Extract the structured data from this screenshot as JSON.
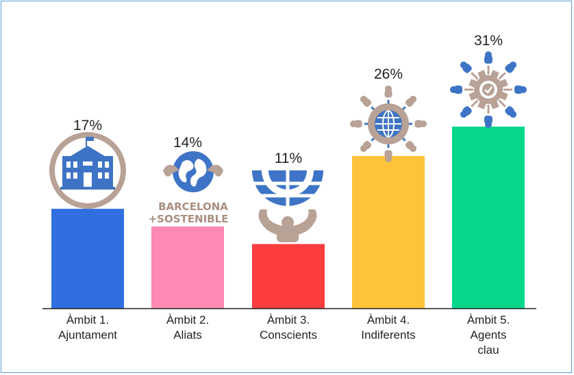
{
  "chart_data": {
    "type": "bar",
    "categories": [
      [
        "Àmbit 1.",
        "Ajuntament"
      ],
      [
        "Àmbit 2.",
        "Aliats"
      ],
      [
        "Àmbit 3.",
        "Conscients"
      ],
      [
        "Àmbit 4.",
        "Indiferents"
      ],
      [
        "Àmbit 5.",
        "Agents",
        "clau"
      ]
    ],
    "values": [
      17,
      14,
      11,
      26,
      31
    ],
    "value_labels": [
      "17%",
      "14%",
      "11%",
      "26%",
      "31%"
    ],
    "colors": [
      "#2f6fe0",
      "#fd89b4",
      "#fc3d3f",
      "#fec33b",
      "#07d68b"
    ],
    "icons": [
      "city-hall-icon",
      "barcelona-sostenible-logo",
      "globe-lifted-icon",
      "globe-people-network-icon",
      "gear-people-network-icon"
    ],
    "logo_lines": [
      "BARCELONA",
      "+SOSTENIBLE"
    ],
    "grid": false,
    "legend": "none"
  }
}
